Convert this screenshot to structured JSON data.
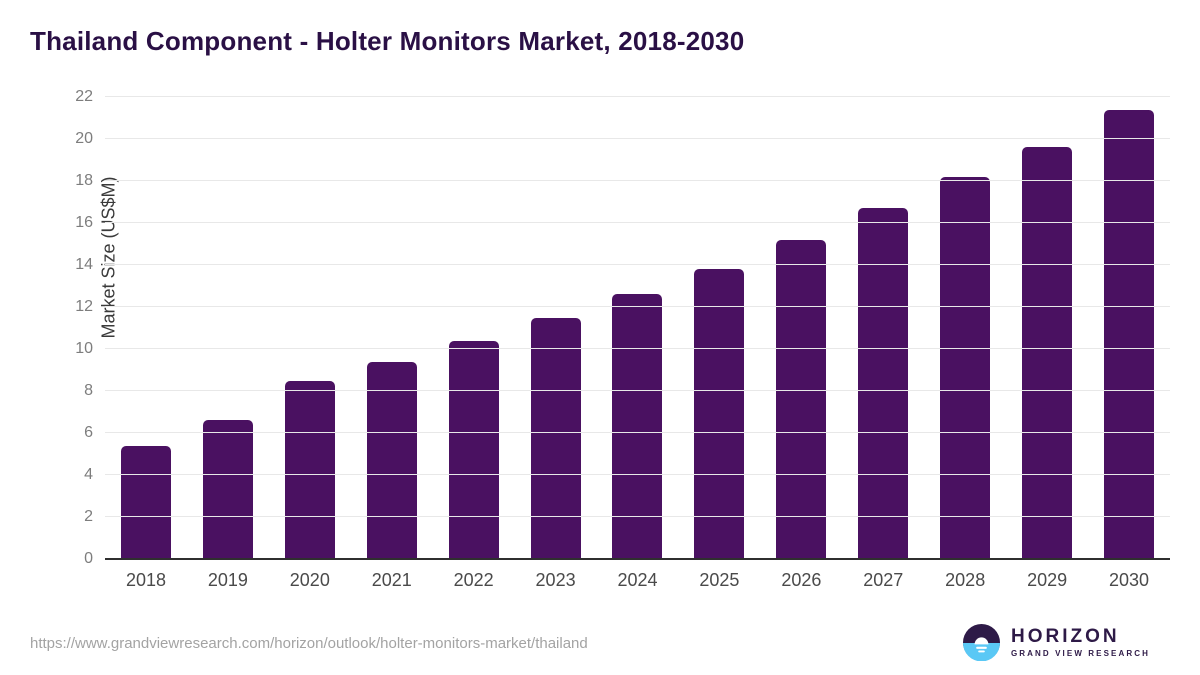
{
  "title": "Thailand Component - Holter Monitors Market, 2018-2030",
  "chart_data": {
    "type": "bar",
    "categories": [
      "2018",
      "2019",
      "2020",
      "2021",
      "2022",
      "2023",
      "2024",
      "2025",
      "2026",
      "2027",
      "2028",
      "2029",
      "2030"
    ],
    "values": [
      5.4,
      6.6,
      8.5,
      9.4,
      10.4,
      11.5,
      12.6,
      13.8,
      15.2,
      16.7,
      18.2,
      19.6,
      21.4
    ],
    "title": "Thailand Component - Holter Monitors Market, 2018-2030",
    "xlabel": "",
    "ylabel": "Market Size (US$M)",
    "ylim": [
      0,
      22
    ],
    "ytick_step": 2,
    "yticks": [
      0,
      2,
      4,
      6,
      8,
      10,
      12,
      14,
      16,
      18,
      20,
      22
    ],
    "grid": "horizontal",
    "legend": "none",
    "bar_color": "#4a1161"
  },
  "footer": {
    "source_url": "https://www.grandviewresearch.com/horizon/outlook/holter-monitors-market/thailand",
    "logo": {
      "title": "HORIZON",
      "subtitle": "GRAND VIEW RESEARCH"
    }
  },
  "colors": {
    "bar": "#4a1161",
    "title_text": "#2a1045",
    "gridline": "#e8e8e8",
    "axis_line": "#2f2f2f",
    "tick_text": "#7d7d7d",
    "x_tick_text": "#4a4a4a",
    "url_text": "#a3a3a3",
    "logo_purple": "#2e1a47",
    "logo_blue": "#5ac8f5"
  }
}
